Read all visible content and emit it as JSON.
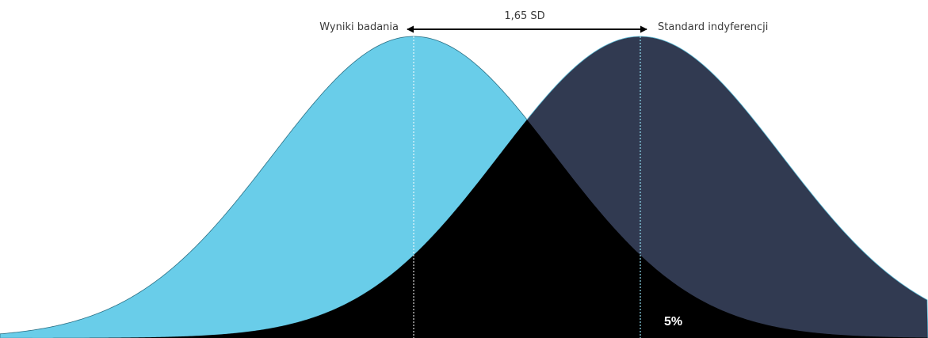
{
  "diagram": {
    "title": "",
    "labels": {
      "left_mean": "Wyniki badania",
      "right_mean": "Standard indyferencji",
      "distance": "1,65 SD",
      "tail_area": "5%"
    },
    "colors": {
      "left_distribution": "#69cde9",
      "right_distribution": "#313a51",
      "overlap": "#000000",
      "mean_line_left": "#ffffff",
      "mean_line_right": "#8fdcf0",
      "arrow": "#000000"
    }
  }
}
